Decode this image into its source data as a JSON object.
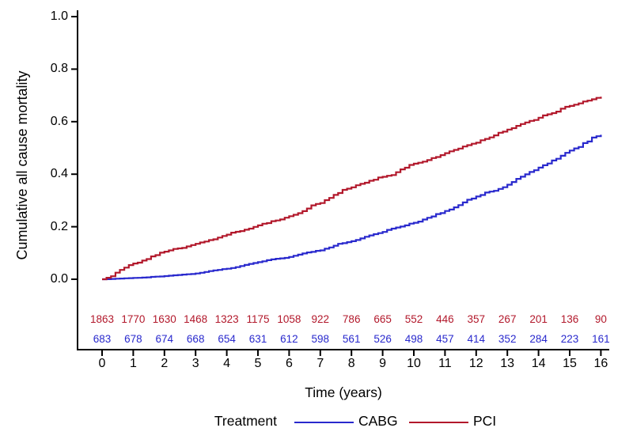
{
  "figure": {
    "background": "#ffffff",
    "axis_color": "#000000",
    "y_axis_title": "Cumulative all cause mortality",
    "x_axis_title": "Time (years)",
    "legend": {
      "title": "Treatment",
      "items": [
        {
          "label": "CABG",
          "color": "#2929CD"
        },
        {
          "label": "PCI",
          "color": "#B2182B"
        }
      ]
    }
  },
  "chart_data": {
    "type": "line",
    "subtype": "kaplan-meier-step-curves",
    "title": "",
    "xlabel": "Time (years)",
    "ylabel": "Cumulative all cause mortality",
    "xlim": [
      0,
      16
    ],
    "ylim": [
      0.0,
      1.0
    ],
    "grid": false,
    "legend_position": "bottom",
    "x_ticks": [
      0,
      1,
      2,
      3,
      4,
      5,
      6,
      7,
      8,
      9,
      10,
      11,
      12,
      13,
      14,
      15,
      16
    ],
    "x_tick_labels": [
      "0",
      "1",
      "2",
      "3",
      "4",
      "5",
      "6",
      "7",
      "8",
      "9",
      "10",
      "11",
      "12",
      "13",
      "14",
      "15",
      "16"
    ],
    "y_ticks": [
      0.0,
      0.2,
      0.4,
      0.6,
      0.8,
      1.0
    ],
    "y_tick_labels": [
      "0.0",
      "0.2",
      "0.4",
      "0.6",
      "0.8",
      "1.0"
    ],
    "x": [
      0,
      1,
      2,
      3,
      4,
      5,
      6,
      7,
      8,
      9,
      10,
      11,
      12,
      13,
      14,
      15,
      16
    ],
    "series": [
      {
        "name": "CABG",
        "color": "#2929CD",
        "values": [
          0.0,
          0.005,
          0.012,
          0.022,
          0.04,
          0.065,
          0.085,
          0.11,
          0.145,
          0.18,
          0.215,
          0.26,
          0.315,
          0.36,
          0.425,
          0.49,
          0.55
        ]
      },
      {
        "name": "PCI",
        "color": "#B2182B",
        "values": [
          0.0,
          0.06,
          0.105,
          0.135,
          0.17,
          0.205,
          0.24,
          0.29,
          0.35,
          0.39,
          0.44,
          0.48,
          0.52,
          0.57,
          0.615,
          0.66,
          0.695
        ]
      }
    ],
    "numbers_at_risk": [
      {
        "name": "PCI",
        "color": "#B2182B",
        "values": [
          1863,
          1770,
          1630,
          1468,
          1323,
          1175,
          1058,
          922,
          786,
          665,
          552,
          446,
          357,
          267,
          201,
          136,
          90
        ]
      },
      {
        "name": "CABG",
        "color": "#2929CD",
        "values": [
          683,
          678,
          674,
          668,
          654,
          631,
          612,
          598,
          561,
          526,
          498,
          457,
          414,
          352,
          284,
          223,
          161
        ]
      }
    ]
  }
}
